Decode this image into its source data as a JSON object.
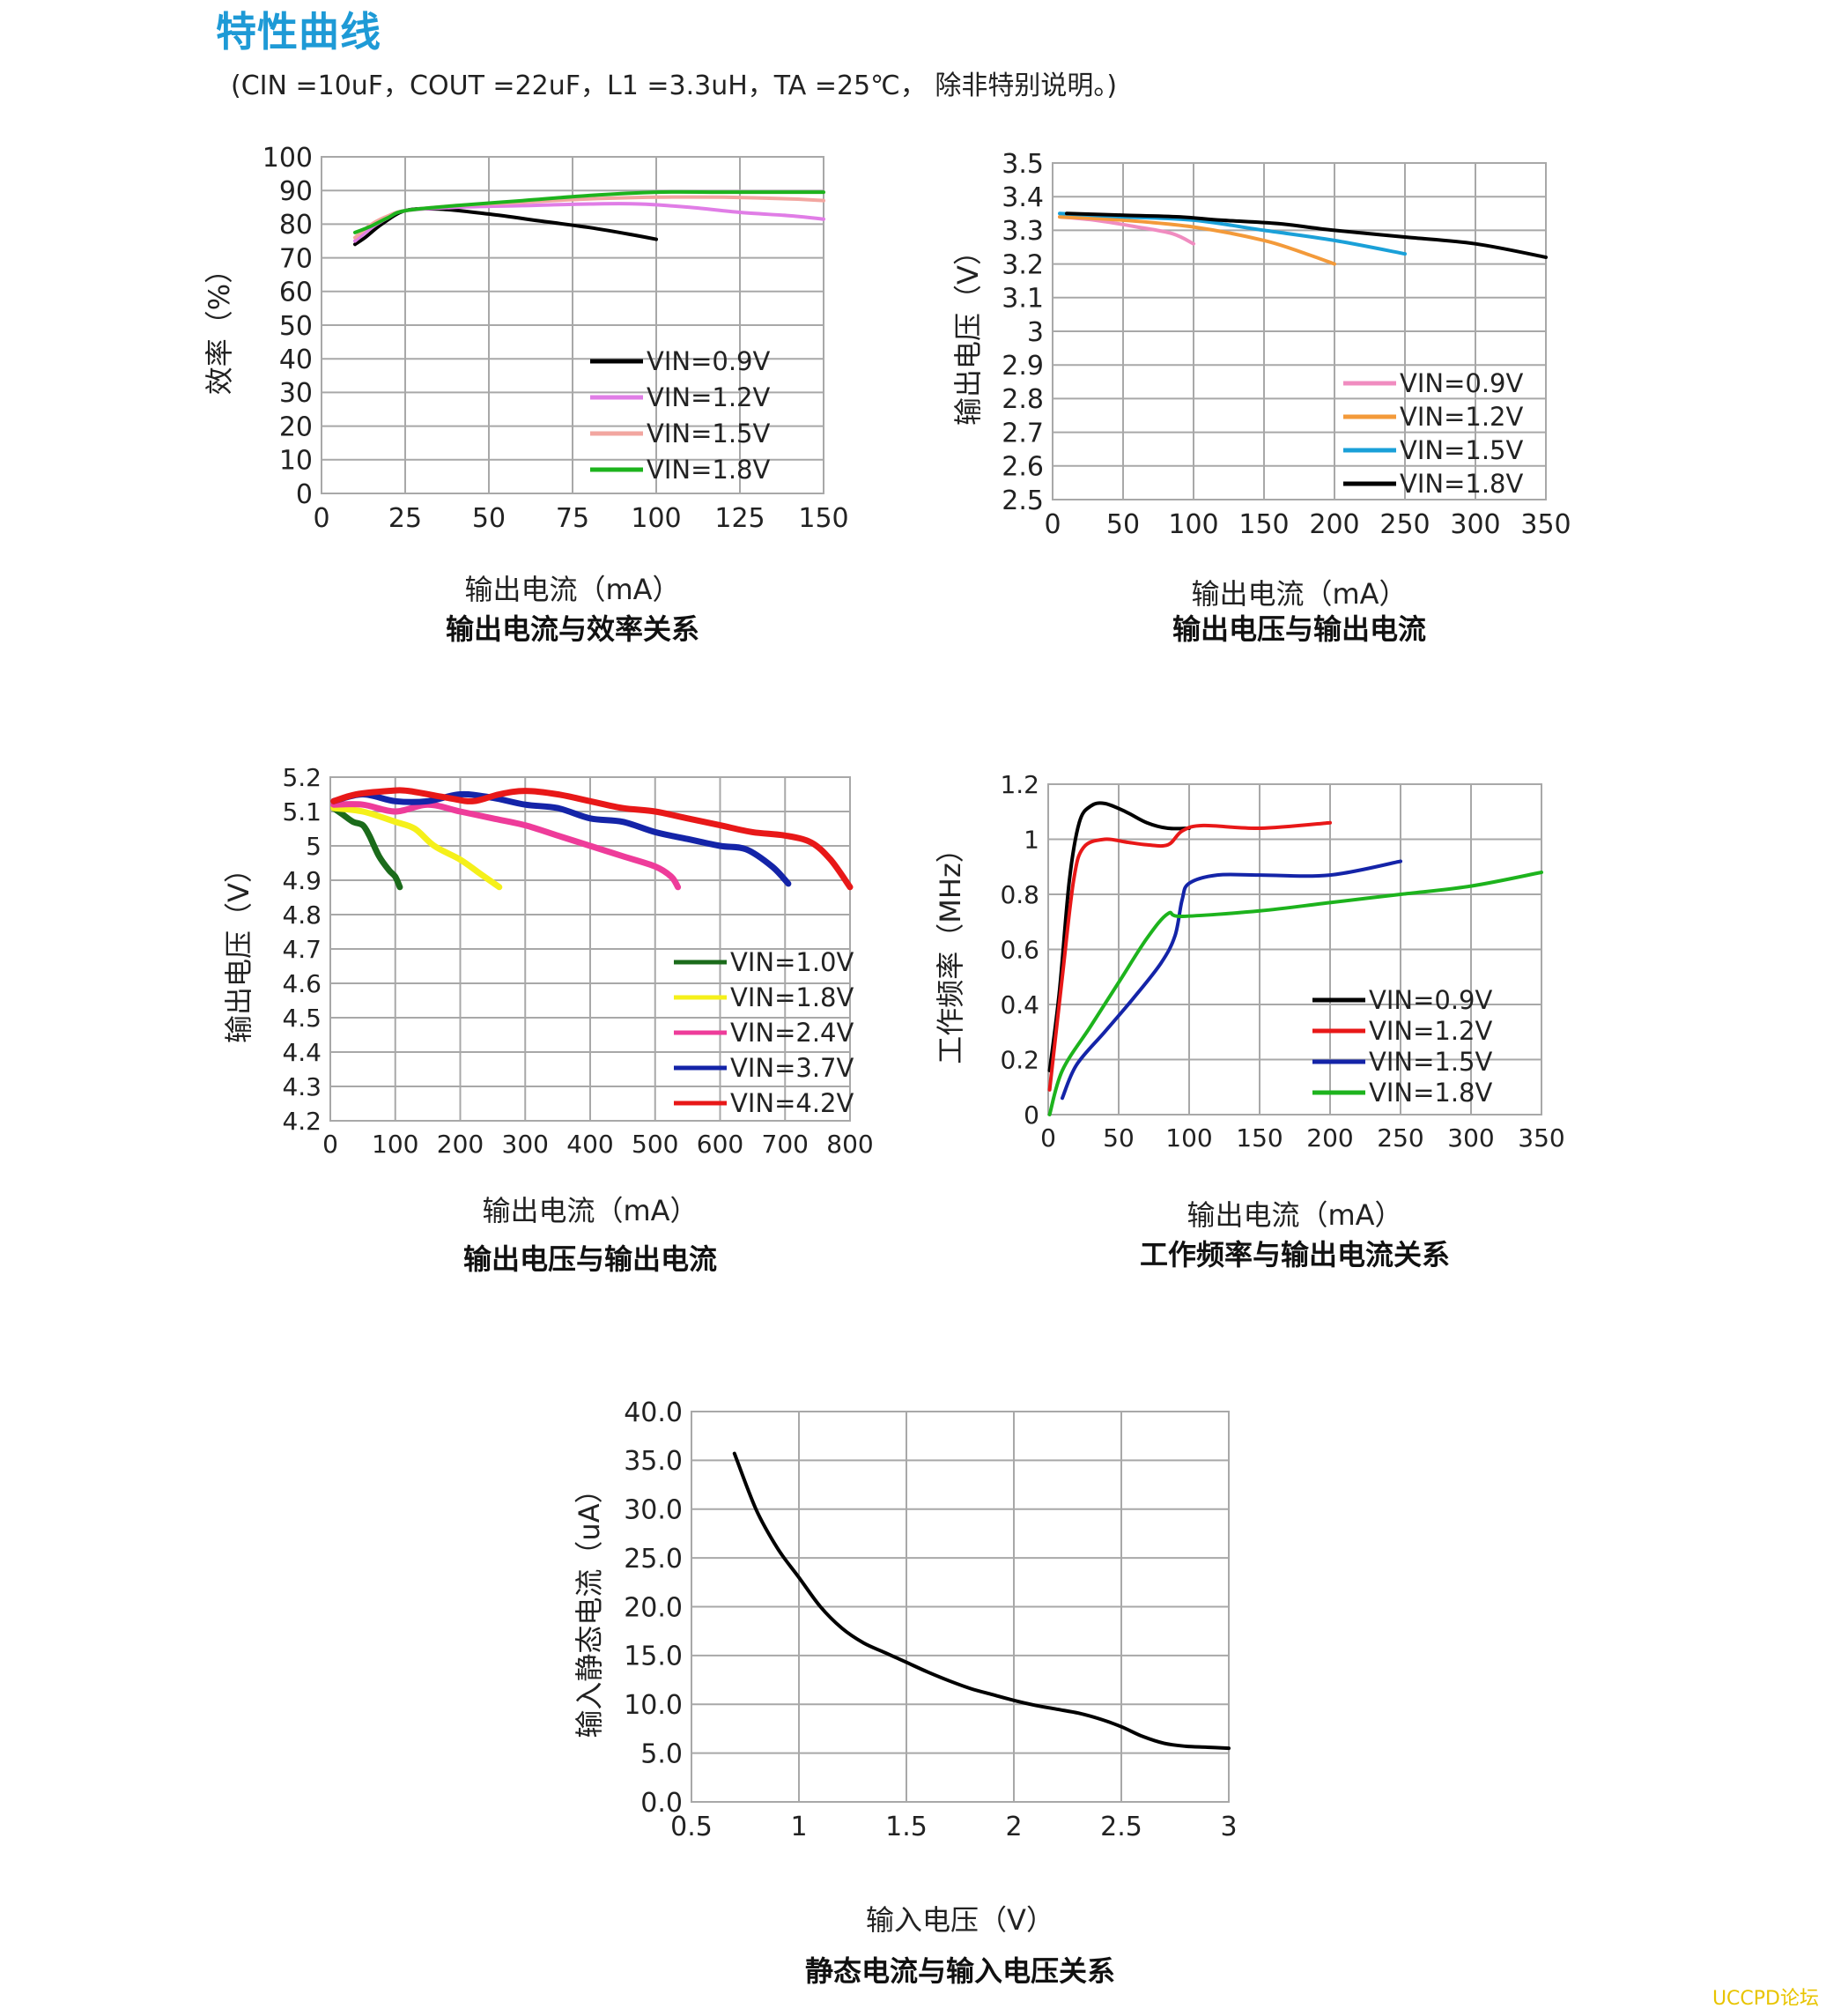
{
  "header": {
    "title": "特性曲线",
    "conditions": "(CIN =10uF，COUT =22uF，L1 =3.3uH，TA =25℃， 除非特别说明。)"
  },
  "watermark": "UCCPD论坛",
  "chart_data": [
    {
      "id": "efficiency",
      "type": "line",
      "caption": "输出电流与效率关系",
      "xlabel": "输出电流（mA）",
      "ylabel": "效率（%）",
      "xlim": [
        0,
        150
      ],
      "ylim": [
        0,
        100
      ],
      "xticks": [
        0,
        25,
        50,
        75,
        100,
        125,
        150
      ],
      "yticks": [
        0,
        10,
        20,
        30,
        40,
        50,
        60,
        70,
        80,
        90,
        100
      ],
      "grid": true,
      "legend": "bottom-right",
      "series": [
        {
          "name": "VIN=0.9V",
          "color": "#000000",
          "points": [
            [
              10,
              74
            ],
            [
              13,
              76
            ],
            [
              18,
              80
            ],
            [
              25,
              84
            ],
            [
              35,
              84.5
            ],
            [
              50,
              83
            ],
            [
              65,
              81
            ],
            [
              80,
              79
            ],
            [
              92,
              77
            ],
            [
              100,
              75.5
            ]
          ]
        },
        {
          "name": "VIN=1.2V",
          "color": "#e07de6",
          "points": [
            [
              10,
              75
            ],
            [
              15,
              79
            ],
            [
              20,
              82
            ],
            [
              25,
              84
            ],
            [
              40,
              85
            ],
            [
              60,
              85.5
            ],
            [
              80,
              86
            ],
            [
              95,
              86
            ],
            [
              110,
              85
            ],
            [
              125,
              83.5
            ],
            [
              140,
              82.5
            ],
            [
              150,
              81.5
            ]
          ]
        },
        {
          "name": "VIN=1.5V",
          "color": "#f2a6a0",
          "points": [
            [
              10,
              76
            ],
            [
              15,
              80
            ],
            [
              20,
              82.5
            ],
            [
              25,
              84
            ],
            [
              40,
              85.5
            ],
            [
              60,
              86.5
            ],
            [
              80,
              87.5
            ],
            [
              100,
              88
            ],
            [
              120,
              88
            ],
            [
              140,
              87.5
            ],
            [
              150,
              87
            ]
          ]
        },
        {
          "name": "VIN=1.8V",
          "color": "#1db31d",
          "points": [
            [
              10,
              77.5
            ],
            [
              15,
              79.5
            ],
            [
              20,
              82
            ],
            [
              25,
              84
            ],
            [
              40,
              85.5
            ],
            [
              60,
              87
            ],
            [
              80,
              88.5
            ],
            [
              100,
              89.5
            ],
            [
              120,
              89.5
            ],
            [
              140,
              89.5
            ],
            [
              150,
              89.5
            ]
          ]
        }
      ]
    },
    {
      "id": "vout-iout-1",
      "type": "line",
      "caption": "输出电压与输出电流",
      "xlabel": "输出电流（mA）",
      "ylabel": "输出电压（V）",
      "xlim": [
        0,
        350
      ],
      "ylim": [
        2.5,
        3.5
      ],
      "xticks": [
        0,
        50,
        100,
        150,
        200,
        250,
        300,
        350
      ],
      "yticks": [
        2.5,
        2.6,
        2.7,
        2.8,
        2.9,
        3,
        3.1,
        3.2,
        3.3,
        3.4,
        3.5
      ],
      "grid": true,
      "legend": "bottom-right",
      "series": [
        {
          "name": "VIN=0.9V",
          "color": "#f08cc0",
          "points": [
            [
              5,
              3.34
            ],
            [
              30,
              3.33
            ],
            [
              60,
              3.31
            ],
            [
              85,
              3.29
            ],
            [
              100,
              3.26
            ]
          ]
        },
        {
          "name": "VIN=1.2V",
          "color": "#f39a3a",
          "points": [
            [
              5,
              3.34
            ],
            [
              50,
              3.33
            ],
            [
              100,
              3.31
            ],
            [
              150,
              3.27
            ],
            [
              180,
              3.23
            ],
            [
              200,
              3.2
            ]
          ]
        },
        {
          "name": "VIN=1.5V",
          "color": "#1aa0d8",
          "points": [
            [
              5,
              3.35
            ],
            [
              50,
              3.34
            ],
            [
              100,
              3.33
            ],
            [
              150,
              3.3
            ],
            [
              200,
              3.27
            ],
            [
              250,
              3.23
            ]
          ]
        },
        {
          "name": "VIN=1.8V",
          "color": "#000000",
          "points": [
            [
              10,
              3.35
            ],
            [
              50,
              3.345
            ],
            [
              90,
              3.34
            ],
            [
              120,
              3.33
            ],
            [
              160,
              3.32
            ],
            [
              200,
              3.3
            ],
            [
              250,
              3.28
            ],
            [
              300,
              3.26
            ],
            [
              350,
              3.22
            ]
          ]
        }
      ]
    },
    {
      "id": "vout-iout-2",
      "type": "line",
      "caption": "输出电压与输出电流",
      "xlabel": "输出电流（mA）",
      "ylabel": "输出电压（V）",
      "xlim": [
        0,
        800
      ],
      "ylim": [
        4.2,
        5.2
      ],
      "xticks": [
        0,
        100,
        200,
        300,
        400,
        500,
        600,
        700,
        800
      ],
      "yticks": [
        4.2,
        4.3,
        4.4,
        4.5,
        4.6,
        4.7,
        4.8,
        4.9,
        5,
        5.1,
        5.2
      ],
      "grid": true,
      "legend": "bottom-right",
      "series": [
        {
          "name": "VIN=1.0V",
          "color": "#1b6b1b",
          "points": [
            [
              5,
              5.11
            ],
            [
              20,
              5.09
            ],
            [
              35,
              5.07
            ],
            [
              50,
              5.06
            ],
            [
              60,
              5.03
            ],
            [
              75,
              4.97
            ],
            [
              90,
              4.93
            ],
            [
              100,
              4.91
            ],
            [
              107,
              4.88
            ]
          ]
        },
        {
          "name": "VIN=1.8V",
          "color": "#f5f01a",
          "points": [
            [
              5,
              5.11
            ],
            [
              50,
              5.1
            ],
            [
              100,
              5.07
            ],
            [
              130,
              5.05
            ],
            [
              160,
              5.0
            ],
            [
              200,
              4.96
            ],
            [
              230,
              4.92
            ],
            [
              260,
              4.88
            ]
          ]
        },
        {
          "name": "VIN=2.4V",
          "color": "#ee3c9a",
          "points": [
            [
              5,
              5.12
            ],
            [
              50,
              5.12
            ],
            [
              100,
              5.1
            ],
            [
              150,
              5.12
            ],
            [
              200,
              5.1
            ],
            [
              250,
              5.08
            ],
            [
              300,
              5.06
            ],
            [
              350,
              5.03
            ],
            [
              400,
              5.0
            ],
            [
              450,
              4.97
            ],
            [
              500,
              4.94
            ],
            [
              525,
              4.91
            ],
            [
              535,
              4.88
            ]
          ]
        },
        {
          "name": "VIN=3.7V",
          "color": "#1424a8",
          "points": [
            [
              5,
              5.13
            ],
            [
              50,
              5.15
            ],
            [
              100,
              5.13
            ],
            [
              150,
              5.13
            ],
            [
              200,
              5.15
            ],
            [
              250,
              5.14
            ],
            [
              300,
              5.12
            ],
            [
              350,
              5.11
            ],
            [
              400,
              5.08
            ],
            [
              450,
              5.07
            ],
            [
              500,
              5.04
            ],
            [
              550,
              5.02
            ],
            [
              600,
              5.0
            ],
            [
              640,
              4.99
            ],
            [
              680,
              4.94
            ],
            [
              705,
              4.89
            ]
          ]
        },
        {
          "name": "VIN=4.2V",
          "color": "#e81818",
          "points": [
            [
              5,
              5.13
            ],
            [
              40,
              5.15
            ],
            [
              90,
              5.16
            ],
            [
              120,
              5.16
            ],
            [
              180,
              5.14
            ],
            [
              220,
              5.13
            ],
            [
              260,
              5.15
            ],
            [
              300,
              5.16
            ],
            [
              350,
              5.15
            ],
            [
              400,
              5.13
            ],
            [
              450,
              5.11
            ],
            [
              500,
              5.1
            ],
            [
              550,
              5.08
            ],
            [
              600,
              5.06
            ],
            [
              650,
              5.04
            ],
            [
              700,
              5.03
            ],
            [
              740,
              5.01
            ],
            [
              770,
              4.96
            ],
            [
              800,
              4.88
            ]
          ]
        }
      ]
    },
    {
      "id": "frequency",
      "type": "line",
      "caption": "工作频率与输出电流关系",
      "xlabel": "输出电流（mA）",
      "ylabel": "工作频率（MHz）",
      "xlim": [
        0,
        350
      ],
      "ylim": [
        0,
        1.2
      ],
      "xticks": [
        0,
        50,
        100,
        150,
        200,
        250,
        300,
        350
      ],
      "yticks": [
        0,
        0.2,
        0.4,
        0.6,
        0.8,
        1,
        1.2
      ],
      "grid": true,
      "legend": "bottom-right",
      "series": [
        {
          "name": "VIN=0.9V",
          "color": "#000000",
          "points": [
            [
              1,
              0.16
            ],
            [
              8,
              0.45
            ],
            [
              15,
              0.85
            ],
            [
              22,
              1.06
            ],
            [
              30,
              1.12
            ],
            [
              40,
              1.13
            ],
            [
              55,
              1.1
            ],
            [
              70,
              1.06
            ],
            [
              85,
              1.04
            ],
            [
              100,
              1.04
            ]
          ]
        },
        {
          "name": "VIN=1.2V",
          "color": "#e81818",
          "points": [
            [
              1,
              0.09
            ],
            [
              10,
              0.5
            ],
            [
              18,
              0.85
            ],
            [
              25,
              0.97
            ],
            [
              40,
              1.0
            ],
            [
              55,
              0.99
            ],
            [
              70,
              0.98
            ],
            [
              85,
              0.98
            ],
            [
              95,
              1.03
            ],
            [
              110,
              1.05
            ],
            [
              150,
              1.04
            ],
            [
              200,
              1.06
            ]
          ]
        },
        {
          "name": "VIN=1.5V",
          "color": "#1424a8",
          "points": [
            [
              10,
              0.06
            ],
            [
              20,
              0.18
            ],
            [
              40,
              0.3
            ],
            [
              60,
              0.42
            ],
            [
              80,
              0.55
            ],
            [
              90,
              0.65
            ],
            [
              95,
              0.78
            ],
            [
              100,
              0.84
            ],
            [
              120,
              0.87
            ],
            [
              150,
              0.87
            ],
            [
              200,
              0.87
            ],
            [
              250,
              0.92
            ]
          ]
        },
        {
          "name": "VIN=1.8V",
          "color": "#1db31d",
          "points": [
            [
              1,
              0.0
            ],
            [
              10,
              0.16
            ],
            [
              30,
              0.32
            ],
            [
              50,
              0.48
            ],
            [
              70,
              0.64
            ],
            [
              85,
              0.73
            ],
            [
              95,
              0.72
            ],
            [
              150,
              0.74
            ],
            [
              200,
              0.77
            ],
            [
              250,
              0.8
            ],
            [
              300,
              0.83
            ],
            [
              350,
              0.88
            ]
          ]
        }
      ]
    },
    {
      "id": "quiescent",
      "type": "line",
      "caption": "静态电流与输入电压关系",
      "xlabel": "输入电压（V）",
      "ylabel": "输入静态电流（uA）",
      "xlim": [
        0.5,
        3
      ],
      "ylim": [
        0,
        40
      ],
      "xticks": [
        0.5,
        1,
        1.5,
        2,
        2.5,
        3
      ],
      "ytick_labels": [
        "0.0",
        "5.0",
        "10.0",
        "15.0",
        "20.0",
        "25.0",
        "30.0",
        "35.0",
        "40.0"
      ],
      "yticks": [
        0,
        5,
        10,
        15,
        20,
        25,
        30,
        35,
        40
      ],
      "grid": true,
      "series": [
        {
          "name": "",
          "color": "#000000",
          "points": [
            [
              0.7,
              35.7
            ],
            [
              0.8,
              30
            ],
            [
              0.9,
              26
            ],
            [
              1.0,
              23
            ],
            [
              1.1,
              20
            ],
            [
              1.2,
              17.8
            ],
            [
              1.3,
              16.3
            ],
            [
              1.4,
              15.3
            ],
            [
              1.5,
              14.3
            ],
            [
              1.6,
              13.3
            ],
            [
              1.7,
              12.4
            ],
            [
              1.8,
              11.6
            ],
            [
              1.9,
              11.0
            ],
            [
              2.0,
              10.4
            ],
            [
              2.1,
              9.9
            ],
            [
              2.2,
              9.5
            ],
            [
              2.3,
              9.1
            ],
            [
              2.4,
              8.5
            ],
            [
              2.5,
              7.7
            ],
            [
              2.6,
              6.7
            ],
            [
              2.7,
              6.0
            ],
            [
              2.8,
              5.7
            ],
            [
              2.9,
              5.6
            ],
            [
              3.0,
              5.5
            ]
          ]
        }
      ]
    }
  ]
}
